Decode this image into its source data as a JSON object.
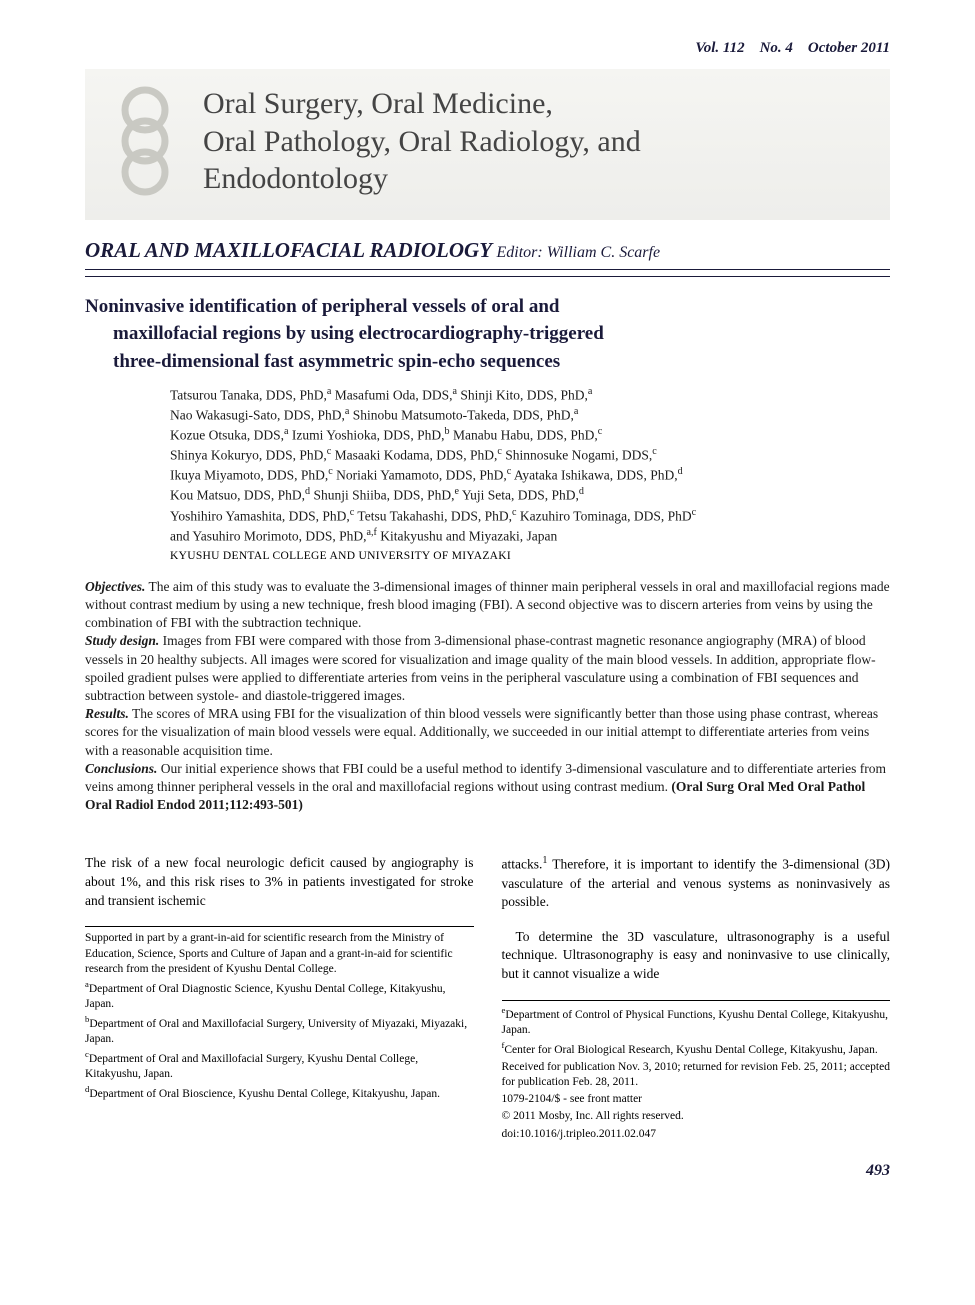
{
  "page": {
    "running_head": "Vol. 112 No. 4 October 2011",
    "page_number": "493"
  },
  "masthead": {
    "title_line1": "Oral Surgery, Oral Medicine,",
    "title_line2": "Oral Pathology, Oral Radiology, and",
    "title_line3": "Endodontology",
    "icon_color": "#c9c9c3",
    "bg_top": "#f5f5f2",
    "bg_bottom": "#eeeeeb"
  },
  "section": {
    "name": "ORAL AND MAXILLOFACIAL RADIOLOGY",
    "editor_label": "Editor:",
    "editor_name": "William C. Scarfe"
  },
  "article": {
    "title_line1": "Noninvasive identification of peripheral vessels of oral and",
    "title_line2": "maxillofacial regions by using electrocardiography-triggered",
    "title_line3": "three-dimensional fast asymmetric spin-echo sequences",
    "authors_html": "Tatsurou Tanaka, DDS, PhD,<sup>a</sup> Masafumi Oda, DDS,<sup>a</sup> Shinji Kito, DDS, PhD,<sup>a</sup><br>Nao Wakasugi-Sato, DDS, PhD,<sup>a</sup> Shinobu Matsumoto-Takeda, DDS, PhD,<sup>a</sup><br>Kozue Otsuka, DDS,<sup>a</sup> Izumi Yoshioka, DDS, PhD,<sup>b</sup> Manabu Habu, DDS, PhD,<sup>c</sup><br>Shinya Kokuryo, DDS, PhD,<sup>c</sup> Masaaki Kodama, DDS, PhD,<sup>c</sup> Shinnosuke Nogami, DDS,<sup>c</sup><br>Ikuya Miyamoto, DDS, PhD,<sup>c</sup> Noriaki Yamamoto, DDS, PhD,<sup>c</sup> Ayataka Ishikawa, DDS, PhD,<sup>d</sup><br>Kou Matsuo, DDS, PhD,<sup>d</sup> Shunji Shiiba, DDS, PhD,<sup>e</sup> Yuji Seta, DDS, PhD,<sup>d</sup><br>Yoshihiro Yamashita, DDS, PhD,<sup>c</sup> Tetsu Takahashi, DDS, PhD,<sup>c</sup> Kazuhiro Tominaga, DDS, PhD<sup>c</sup><br>and Yasuhiro Morimoto, DDS, PhD,<sup>a,f</sup> Kitakyushu and Miyazaki, Japan",
    "institution": "KYUSHU DENTAL COLLEGE AND UNIVERSITY OF MIYAZAKI"
  },
  "abstract": {
    "objectives_label": "Objectives.",
    "objectives_text": " The aim of this study was to evaluate the 3-dimensional images of thinner main peripheral vessels in oral and maxillofacial regions made without contrast medium by using a new technique, fresh blood imaging (FBI). A second objective was to discern arteries from veins by using the combination of FBI with the subtraction technique.",
    "study_label": "Study design.",
    "study_text": " Images from FBI were compared with those from 3-dimensional phase-contrast magnetic resonance angiography (MRA) of blood vessels in 20 healthy subjects. All images were scored for visualization and image quality of the main blood vessels. In addition, appropriate flow-spoiled gradient pulses were applied to differentiate arteries from veins in the peripheral vasculature using a combination of FBI sequences and subtraction between systole- and diastole-triggered images.",
    "results_label": "Results.",
    "results_text": " The scores of MRA using FBI for the visualization of thin blood vessels were significantly better than those using phase contrast, whereas scores for the visualization of main blood vessels were equal. Additionally, we succeeded in our initial attempt to differentiate arteries from veins with a reasonable acquisition time.",
    "conclusions_label": "Conclusions.",
    "conclusions_text": " Our initial experience shows that FBI could be a useful method to identify 3-dimensional vasculature and to differentiate arteries from veins among thinner peripheral vessels in the oral and maxillofacial regions without using contrast medium. ",
    "citation": "(Oral Surg Oral Med Oral Pathol Oral Radiol Endod 2011;112:493-501)"
  },
  "body": {
    "col1_p1": "The risk of a new focal neurologic deficit caused by angiography is about 1%, and this risk rises to 3% in patients investigated for stroke and transient ischemic",
    "col2_p1_html": "attacks.<sup>1</sup> Therefore, it is important to identify the 3-dimensional (3D) vasculature of the arterial and venous systems as noninvasively as possible.",
    "col2_p2": "To determine the 3D vasculature, ultrasonography is a useful technique. Ultrasonography is easy and noninvasive to use clinically, but it cannot visualize a wide"
  },
  "footnotes_left": [
    "Supported in part by a grant-in-aid for scientific research from the Ministry of Education, Science, Sports and Culture of Japan and a grant-in-aid for scientific research from the president of Kyushu Dental College.",
    "<sup>a</sup>Department of Oral Diagnostic Science, Kyushu Dental College, Kitakyushu, Japan.",
    "<sup>b</sup>Department of Oral and Maxillofacial Surgery, University of Miyazaki, Miyazaki, Japan.",
    "<sup>c</sup>Department of Oral and Maxillofacial Surgery, Kyushu Dental College, Kitakyushu, Japan.",
    "<sup>d</sup>Department of Oral Bioscience, Kyushu Dental College, Kitakyushu, Japan."
  ],
  "footnotes_right": [
    "<sup>e</sup>Department of Control of Physical Functions, Kyushu Dental College, Kitakyushu, Japan.",
    "<sup>f</sup>Center for Oral Biological Research, Kyushu Dental College, Kitakyushu, Japan.",
    "Received for publication Nov. 3, 2010; returned for revision Feb. 25, 2011; accepted for publication Feb. 28, 2011.",
    "1079-2104/$ - see front matter",
    "© 2011 Mosby, Inc. All rights reserved.",
    "doi:10.1016/j.tripleo.2011.02.047"
  ],
  "colors": {
    "text_primary": "#1a1a3a",
    "text_body": "#1a1a1a",
    "rule": "#1a1a3a",
    "background": "#ffffff"
  },
  "typography": {
    "running_head_pt": 15,
    "masthead_title_pt": 30,
    "section_pt": 21,
    "article_title_pt": 19,
    "authors_pt": 13.5,
    "institution_pt": 11.5,
    "abstract_pt": 13.5,
    "body_pt": 13.5,
    "footnote_pt": 11.5,
    "page_num_pt": 16
  }
}
